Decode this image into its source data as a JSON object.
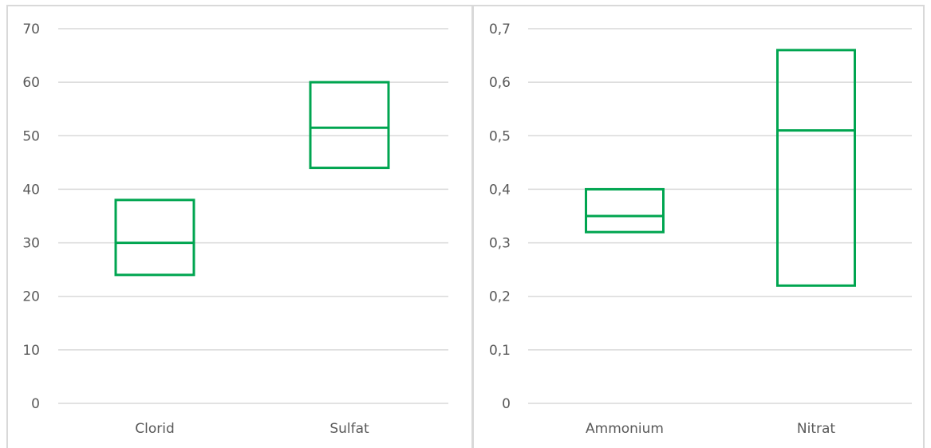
{
  "chart_data": [
    {
      "type": "box",
      "categories": [
        "Clorid",
        "Sulfat"
      ],
      "series": [
        {
          "values": [
            {
              "low": 24,
              "mid": 30,
              "high": 38
            },
            {
              "low": 44,
              "mid": 51.5,
              "high": 60
            }
          ]
        }
      ],
      "ylim": [
        0,
        70
      ],
      "yticks": [
        "0",
        "10",
        "20",
        "30",
        "40",
        "50",
        "60",
        "70"
      ],
      "grid": true,
      "color": "#00a550"
    },
    {
      "type": "box",
      "categories": [
        "Ammonium",
        "Nitrat"
      ],
      "series": [
        {
          "values": [
            {
              "low": 0.32,
              "mid": 0.35,
              "high": 0.4
            },
            {
              "low": 0.22,
              "mid": 0.51,
              "high": 0.66
            }
          ]
        }
      ],
      "ylim": [
        0,
        0.7
      ],
      "yticks": [
        "0",
        "0,1",
        "0,2",
        "0,3",
        "0,4",
        "0,5",
        "0,6",
        "0,7"
      ],
      "grid": true,
      "color": "#00a550"
    }
  ]
}
